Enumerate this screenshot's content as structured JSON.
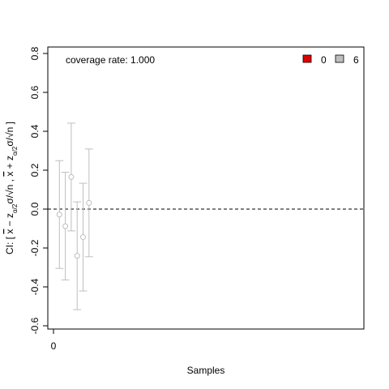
{
  "chart_data": {
    "type": "scatter",
    "title": "",
    "xlabel": "Samples",
    "ylabel": "CI: [ x̄ − z_{α/2}σ/√n , x̄ + z_{α/2}σ/√n ]",
    "ylabel_parts": {
      "open": "CI: [ ",
      "xbar1": "x",
      "minus": " − z",
      "sub1": "α/2",
      "mid": "σ/√n , ",
      "xbar2": "x",
      "plus": " + z",
      "sub2": "α/2",
      "close": "σ/√n ]"
    },
    "xlim": [
      0,
      50
    ],
    "ylim": [
      -0.6,
      0.8
    ],
    "x_ticks": [
      0
    ],
    "y_ticks": [
      -0.6,
      -0.4,
      -0.2,
      0.0,
      0.2,
      0.4,
      0.6,
      0.8
    ],
    "y_tick_labels": [
      "-0.6",
      "-0.4",
      "-0.2",
      "0.0",
      "0.2",
      "0.4",
      "0.6",
      "0.8"
    ],
    "reference_line": 0.0,
    "grid": false,
    "annotation": "coverage rate: 1.000",
    "legend": {
      "placement": "top-right",
      "items": [
        {
          "label": "0",
          "color": "#e00000"
        },
        {
          "label": "6",
          "color": "#bebebe"
        }
      ]
    },
    "points": [
      {
        "x": 1,
        "y": -0.028,
        "lower": -0.305,
        "upper": 0.249
      },
      {
        "x": 2,
        "y": -0.088,
        "lower": -0.364,
        "upper": 0.189
      },
      {
        "x": 3,
        "y": 0.165,
        "lower": -0.112,
        "upper": 0.442
      },
      {
        "x": 4,
        "y": -0.24,
        "lower": -0.517,
        "upper": 0.037
      },
      {
        "x": 5,
        "y": -0.144,
        "lower": -0.421,
        "upper": 0.133
      },
      {
        "x": 6,
        "y": 0.032,
        "lower": -0.245,
        "upper": 0.309
      }
    ],
    "point_color": "#bebebe"
  }
}
